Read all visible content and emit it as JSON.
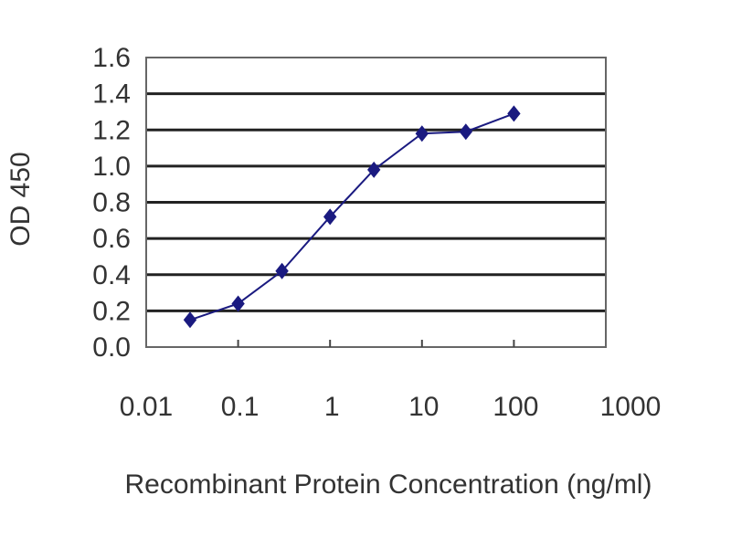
{
  "chart_data": {
    "type": "line",
    "title": "",
    "xlabel": "Recombinant Protein Concentration (ng/ml)",
    "ylabel": "OD 450",
    "x_scale": "log",
    "xlim": [
      0.01,
      1000
    ],
    "ylim": [
      0,
      1.6
    ],
    "x_ticks": [
      "0.01",
      "0.1",
      "1",
      "10",
      "100",
      "1000"
    ],
    "y_ticks": [
      "0.0",
      "0.2",
      "0.4",
      "0.6",
      "0.8",
      "1.0",
      "1.2",
      "1.4",
      "1.6"
    ],
    "grid": "horizontal",
    "legend": "none",
    "series": [
      {
        "x": [
          0.03,
          0.1,
          0.3,
          1,
          3,
          10,
          30,
          100
        ],
        "y": [
          0.15,
          0.24,
          0.42,
          0.72,
          0.98,
          1.18,
          1.19,
          1.29
        ],
        "color": "#1a1a80",
        "marker": "diamond"
      }
    ]
  }
}
